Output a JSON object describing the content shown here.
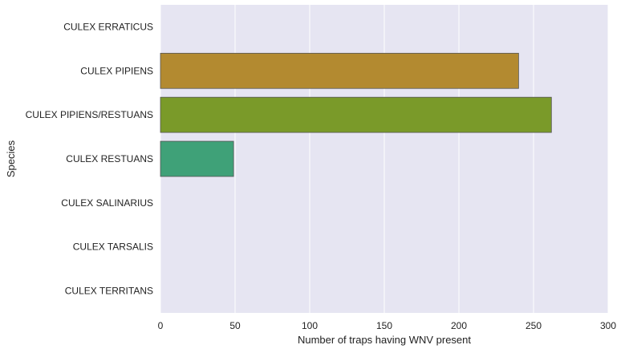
{
  "chart_data": {
    "type": "bar",
    "orientation": "horizontal",
    "title": "",
    "xlabel": "Number of traps having WNV present",
    "ylabel": "Species",
    "xlim": [
      0,
      300
    ],
    "xticks": [
      0,
      50,
      100,
      150,
      200,
      250,
      300
    ],
    "grid": true,
    "background_color": "#e6e5f2",
    "categories": [
      "CULEX ERRATICUS",
      "CULEX PIPIENS",
      "CULEX PIPIENS/RESTUANS",
      "CULEX RESTUANS",
      "CULEX SALINARIUS",
      "CULEX TARSALIS",
      "CULEX TERRITANS"
    ],
    "values": [
      0,
      240,
      262,
      49,
      0,
      0,
      0
    ],
    "colors": [
      "#e5566d",
      "#b38a30",
      "#7a9a29",
      "#3fa178",
      "#3fa4a8",
      "#4a9bd1",
      "#b27ed6"
    ]
  }
}
